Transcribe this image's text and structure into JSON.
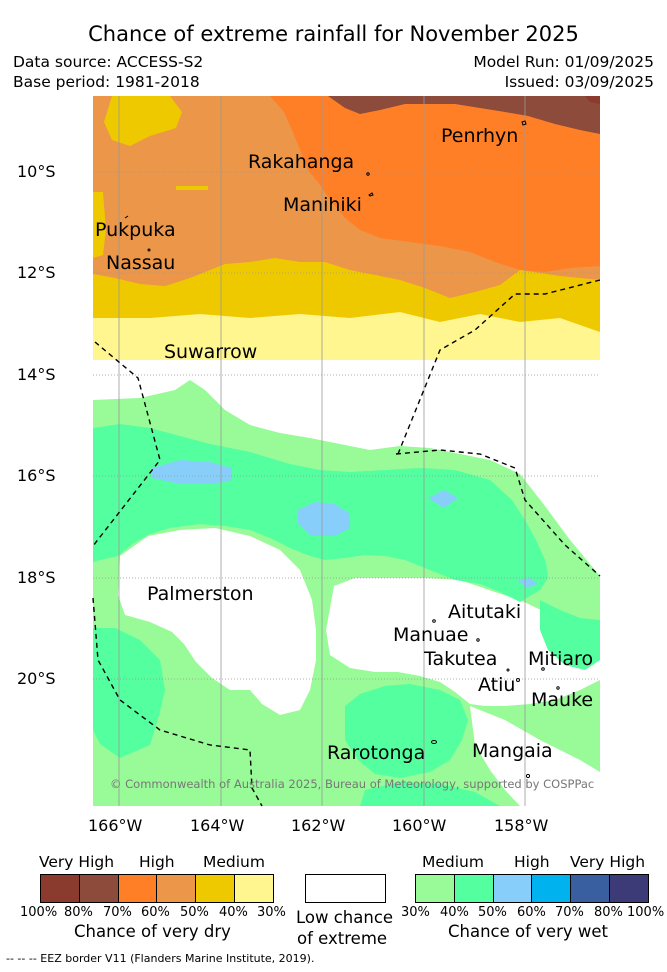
{
  "title": "Chance of extreme rainfall for November 2025",
  "header": {
    "data_source": "Data source: ACCESS-S2",
    "base_period": "Base period: 1981-2018",
    "model_run": "Model Run: 01/09/2025",
    "issued": "Issued: 03/09/2025"
  },
  "map": {
    "lon_labels": [
      "166°W",
      "164°W",
      "162°W",
      "160°W",
      "158°W"
    ],
    "lat_labels": [
      "10°S",
      "12°S",
      "14°S",
      "16°S",
      "18°S",
      "20°S"
    ],
    "places": {
      "penrhyn": "Penrhyn",
      "rakahanga": "Rakahanga",
      "manihiki": "Manihiki",
      "pukapuka": "Pukpuka",
      "nassau": "Nassau",
      "suwarrow": "Suwarrow",
      "palmerston": "Palmerston",
      "aitutaki": "Aitutaki",
      "manuae": "Manuae",
      "takutea": "Takutea",
      "mitiaro": "Mitiaro",
      "atiu": "Atiu",
      "mauke": "Mauke",
      "rarotonga": "Rarotonga",
      "mangaia": "Mangaia"
    },
    "credit": "© Commonwealth of Australia 2025, Bureau of Meteorology, supported by COSPPac"
  },
  "legend": {
    "dry": {
      "levels": [
        "Very High",
        "High",
        "Medium"
      ],
      "colors": [
        "#8b3a2e",
        "#8c4b3b",
        "#ff7f27",
        "#eb9648",
        "#eec900",
        "#fff68f"
      ],
      "ticks": [
        "100%",
        "80%",
        "70%",
        "60%",
        "50%",
        "40%",
        "30%"
      ],
      "caption": "Chance of very dry"
    },
    "low": {
      "color": "#ffffff",
      "caption_line1": "Low chance",
      "caption_line2": "of extreme"
    },
    "wet": {
      "levels": [
        "Medium",
        "High",
        "Very High"
      ],
      "colors": [
        "#98fb98",
        "#54ff9f",
        "#87cefa",
        "#00b2ee",
        "#3a5fa0",
        "#3d3a78"
      ],
      "ticks": [
        "30%",
        "40%",
        "50%",
        "60%",
        "70%",
        "80%",
        "100%"
      ],
      "caption": "Chance of very wet"
    }
  },
  "footnote": "--  --  -- EEZ border V11 (Flanders Marine Institute, 2019)."
}
